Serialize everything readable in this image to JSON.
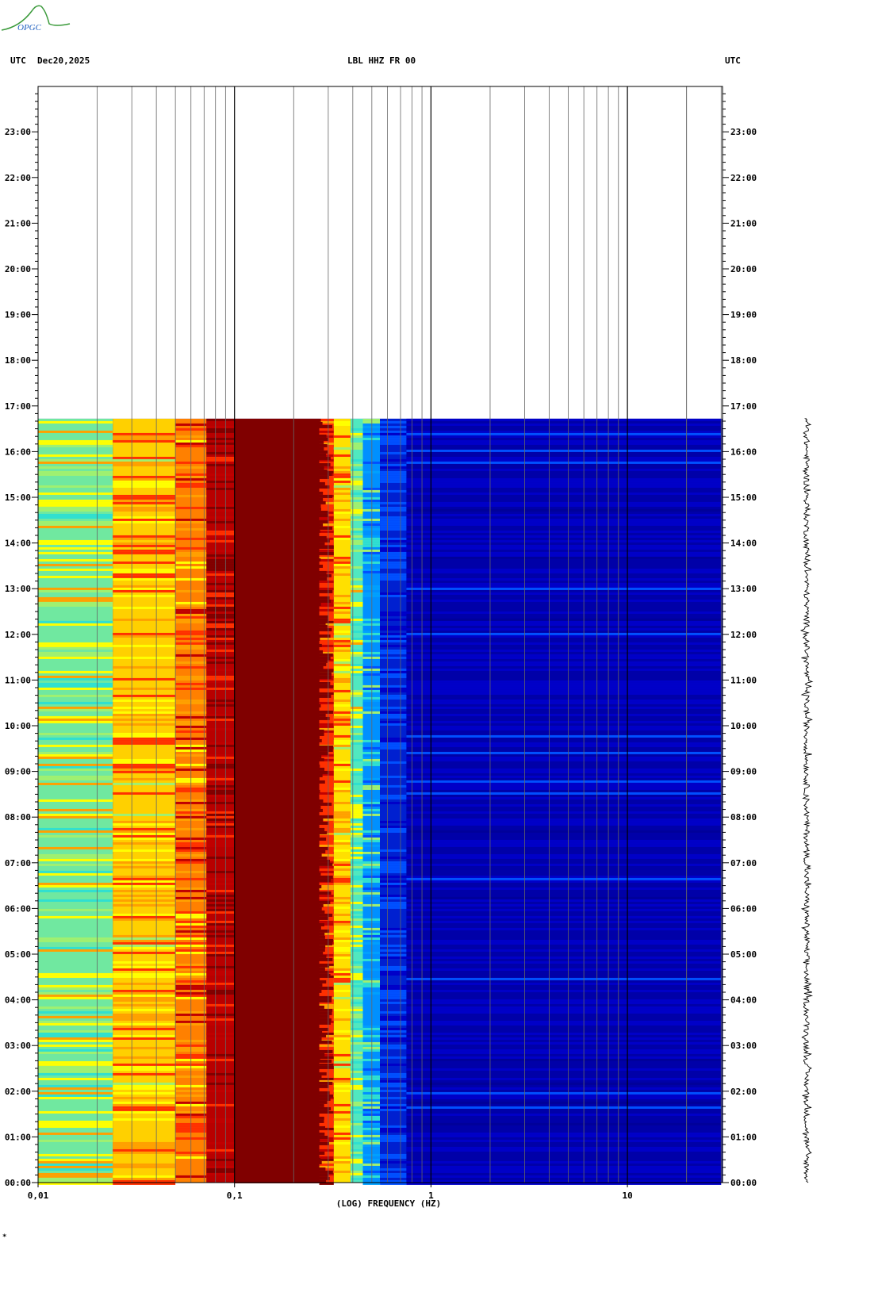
{
  "header": {
    "left_utc": "UTC",
    "date": "Dec20,2025",
    "station": "LBL HHZ FR 00",
    "right_utc": "UTC"
  },
  "logo": {
    "text": "OPGC"
  },
  "footer_mark": "*",
  "chart_data": {
    "type": "heatmap",
    "title": "LBL HHZ FR 00",
    "xlabel": "(LOG) FREQUENCY (HZ)",
    "ylabel": "UTC",
    "x_scale": "log",
    "xlim": [
      0.01,
      30
    ],
    "x_ticks": [
      {
        "value": 0.01,
        "label": "0,01"
      },
      {
        "value": 0.1,
        "label": "0,1"
      },
      {
        "value": 1,
        "label": "1"
      },
      {
        "value": 10,
        "label": "10"
      }
    ],
    "ylim_hours": [
      0,
      24
    ],
    "y_ticks": [
      "00:00",
      "01:00",
      "02:00",
      "03:00",
      "04:00",
      "05:00",
      "06:00",
      "07:00",
      "08:00",
      "09:00",
      "10:00",
      "11:00",
      "12:00",
      "13:00",
      "14:00",
      "15:00",
      "16:00",
      "17:00",
      "18:00",
      "19:00",
      "20:00",
      "21:00",
      "22:00",
      "23:00"
    ],
    "data_end_hour": 16.72,
    "grid": true,
    "colormap": [
      "#00009a",
      "#0000c8",
      "#0050ff",
      "#00a0ff",
      "#30e0d0",
      "#a0f070",
      "#ffff00",
      "#ffa000",
      "#ff3000",
      "#c00000",
      "#800000"
    ],
    "spectral_bands": [
      {
        "f_from": 0.01,
        "f_to": 0.024,
        "level": 5.3,
        "color": "#70e8a0"
      },
      {
        "f_from": 0.024,
        "f_to": 0.05,
        "level": 6.6,
        "color": "#ffd000"
      },
      {
        "f_from": 0.05,
        "f_to": 0.072,
        "level": 7.3,
        "color": "#ff8000"
      },
      {
        "f_from": 0.072,
        "f_to": 0.1,
        "level": 9.0,
        "color": "#b80000"
      },
      {
        "f_from": 0.1,
        "f_to": 0.27,
        "level": 10.0,
        "color": "#800000"
      },
      {
        "f_from": 0.27,
        "f_to": 0.32,
        "level": 8.0,
        "color": "#ff3000"
      },
      {
        "f_from": 0.32,
        "f_to": 0.39,
        "level": 6.3,
        "color": "#ffe000"
      },
      {
        "f_from": 0.39,
        "f_to": 0.45,
        "level": 4.8,
        "color": "#50e8c0"
      },
      {
        "f_from": 0.45,
        "f_to": 0.55,
        "level": 3.2,
        "color": "#0090ff"
      },
      {
        "f_from": 0.55,
        "f_to": 0.75,
        "level": 1.6,
        "color": "#0020d0"
      },
      {
        "f_from": 0.75,
        "f_to": 30,
        "level": 0.9,
        "color": "#0000a8"
      }
    ]
  }
}
